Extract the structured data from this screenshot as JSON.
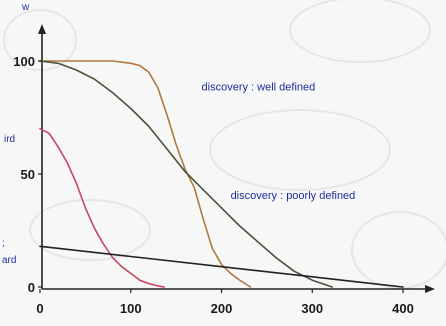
{
  "chart_data": {
    "type": "line",
    "xlim": [
      0,
      420
    ],
    "ylim": [
      0,
      112
    ],
    "x_ticks": [
      0,
      100,
      200,
      300,
      400
    ],
    "y_ticks": [
      0,
      50,
      100
    ],
    "x_tick_labels": [
      "0",
      "100",
      "200",
      "300",
      "400"
    ],
    "y_tick_labels": [
      "0",
      "50",
      "100"
    ],
    "title": "",
    "xlabel": "",
    "ylabel": "",
    "grid": false,
    "partial_text": {
      "top_left": "w",
      "ylabel_upper": "ird",
      "ylabel_mid": ";",
      "ylabel_lower": "ard"
    },
    "annotations": [
      {
        "text": "discovery : well defined",
        "x": 178,
        "y": 87
      },
      {
        "text": "discovery : poorly defined",
        "x": 210,
        "y": 39
      }
    ],
    "series": [
      {
        "color": "#b1783d",
        "points": [
          [
            0,
            100
          ],
          [
            40,
            100
          ],
          [
            80,
            100
          ],
          [
            100,
            99
          ],
          [
            110,
            98
          ],
          [
            120,
            95
          ],
          [
            130,
            88
          ],
          [
            140,
            76
          ],
          [
            150,
            63
          ],
          [
            160,
            52
          ],
          [
            170,
            44
          ],
          [
            180,
            30
          ],
          [
            190,
            17
          ],
          [
            200,
            10
          ],
          [
            210,
            6
          ],
          [
            220,
            3
          ],
          [
            232,
            0
          ]
        ]
      },
      {
        "color": "#4d5139",
        "points": [
          [
            0,
            100
          ],
          [
            20,
            99
          ],
          [
            40,
            96
          ],
          [
            60,
            92
          ],
          [
            80,
            86
          ],
          [
            100,
            79
          ],
          [
            120,
            71
          ],
          [
            140,
            61
          ],
          [
            160,
            51
          ],
          [
            180,
            43
          ],
          [
            200,
            35
          ],
          [
            220,
            27
          ],
          [
            240,
            20
          ],
          [
            260,
            13
          ],
          [
            280,
            7
          ],
          [
            300,
            3
          ],
          [
            322,
            0
          ]
        ]
      },
      {
        "color": "#c5495e",
        "points": [
          [
            0,
            70
          ],
          [
            10,
            68
          ],
          [
            20,
            62
          ],
          [
            30,
            55
          ],
          [
            40,
            46
          ],
          [
            50,
            35
          ],
          [
            60,
            26
          ],
          [
            70,
            19
          ],
          [
            80,
            13
          ],
          [
            90,
            9
          ],
          [
            100,
            6
          ],
          [
            110,
            3
          ],
          [
            120,
            1.5
          ],
          [
            130,
            0.5
          ],
          [
            137,
            0
          ]
        ]
      },
      {
        "color": "#222222",
        "points": [
          [
            0,
            18
          ],
          [
            100,
            13.5
          ],
          [
            200,
            9
          ],
          [
            300,
            4.5
          ],
          [
            400,
            0
          ]
        ]
      }
    ]
  }
}
